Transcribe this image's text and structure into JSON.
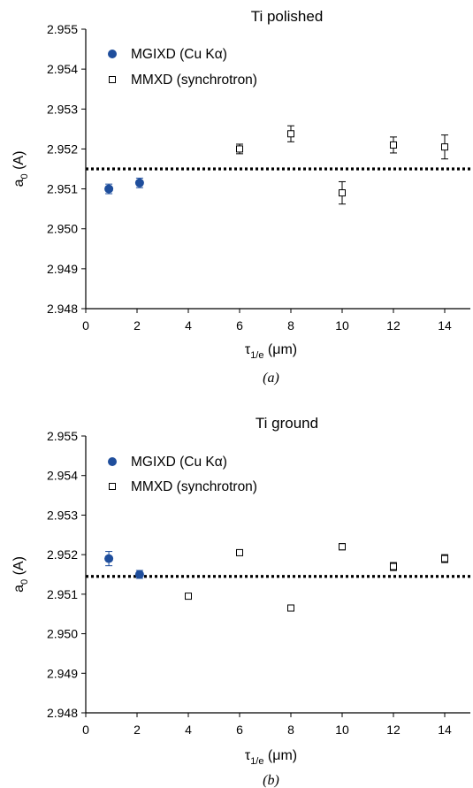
{
  "chart_data": [
    {
      "type": "scatter",
      "title": "Ti polished",
      "xlabel": "τ1/e (μm)",
      "xlabel_base": "τ",
      "xlabel_sub": "1/e",
      "xlabel_unit": " (μm)",
      "ylabel": "a0 (A)",
      "ylabel_base": "a",
      "ylabel_sub": "0",
      "ylabel_unit": " (A)",
      "caption": "(a)",
      "xlim": [
        0,
        15
      ],
      "ylim": [
        2.948,
        2.955
      ],
      "xticks": [
        "0",
        "2",
        "4",
        "6",
        "8",
        "10",
        "12",
        "14"
      ],
      "yticks": [
        "2.948",
        "2.949",
        "2.950",
        "2.951",
        "2.952",
        "2.953",
        "2.954",
        "2.955"
      ],
      "reference_line": 2.9515,
      "grid": false,
      "legend_position": "top-left",
      "series": [
        {
          "name": "MGIXD (Cu Kα)",
          "marker": "filled-circle",
          "color": "#1f4e9c",
          "x": [
            0.9,
            2.1
          ],
          "y": [
            2.951,
            2.95115
          ],
          "err": [
            0.00012,
            0.00012
          ]
        },
        {
          "name": "MMXD (synchrotron)",
          "marker": "open-square",
          "color": "#000000",
          "x": [
            6,
            8,
            10,
            12,
            14
          ],
          "y": [
            2.952,
            2.95238,
            2.9509,
            2.9521,
            2.95205
          ],
          "err": [
            0.00012,
            0.0002,
            0.00028,
            0.0002,
            0.0003
          ]
        }
      ]
    },
    {
      "type": "scatter",
      "title": "Ti ground",
      "xlabel": "τ1/e (μm)",
      "xlabel_base": "τ",
      "xlabel_sub": "1/e",
      "xlabel_unit": " (μm)",
      "ylabel": "a0 (A)",
      "ylabel_base": "a",
      "ylabel_sub": "0",
      "ylabel_unit": " (A)",
      "caption": "(b)",
      "xlim": [
        0,
        15
      ],
      "ylim": [
        2.948,
        2.955
      ],
      "xticks": [
        "0",
        "2",
        "4",
        "6",
        "8",
        "10",
        "12",
        "14"
      ],
      "yticks": [
        "2.948",
        "2.949",
        "2.950",
        "2.951",
        "2.952",
        "2.953",
        "2.954",
        "2.955"
      ],
      "reference_line": 2.95145,
      "grid": false,
      "legend_position": "top-left",
      "series": [
        {
          "name": "MGIXD (Cu Kα)",
          "marker": "filled-circle",
          "color": "#1f4e9c",
          "x": [
            0.9,
            2.1
          ],
          "y": [
            2.9519,
            2.9515
          ],
          "err": [
            0.00018,
            0.0001
          ]
        },
        {
          "name": "MMXD (synchrotron)",
          "marker": "open-square",
          "color": "#000000",
          "x": [
            4,
            6,
            8,
            10,
            12,
            14
          ],
          "y": [
            2.95095,
            2.95205,
            2.95065,
            2.9522,
            2.9517,
            2.9519
          ],
          "err": [
            6e-05,
            6e-05,
            6e-05,
            8e-05,
            0.0001,
            0.0001
          ]
        }
      ]
    }
  ]
}
